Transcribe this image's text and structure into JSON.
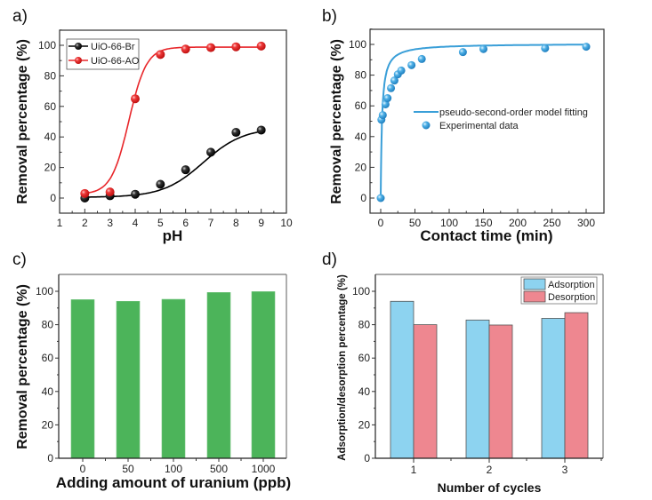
{
  "chart_data": [
    {
      "panel": "a)",
      "type": "line",
      "title": "",
      "xlabel": "pH",
      "ylabel": "Removal percentage (%)",
      "xlim": [
        1,
        10
      ],
      "ylim": [
        -10,
        110
      ],
      "xticks": [
        "1",
        "2",
        "3",
        "4",
        "5",
        "6",
        "7",
        "8",
        "9",
        "10"
      ],
      "yticks": [
        "0",
        "20",
        "40",
        "60",
        "80",
        "100"
      ],
      "legend": "top-left",
      "grid": false,
      "x": [
        2,
        3,
        4,
        5,
        6,
        7,
        8,
        9
      ],
      "series": [
        {
          "name": "UiO-66-Br",
          "color": "#000000",
          "values": [
            0,
            1.5,
            2.5,
            9,
            18.5,
            30,
            43,
            44.5
          ]
        },
        {
          "name": "UiO-66-AO",
          "color": "#e8262a",
          "values": [
            3,
            4,
            65,
            94,
            97.5,
            98.5,
            99,
            99.5
          ]
        }
      ]
    },
    {
      "panel": "b)",
      "type": "scatter",
      "title": "",
      "xlabel": "Contact time (min)",
      "ylabel": "Removal percentage (%)",
      "xlim": [
        -15,
        315
      ],
      "ylim": [
        -10,
        110
      ],
      "xticks": [
        "0",
        "50",
        "100",
        "150",
        "200",
        "250",
        "300"
      ],
      "yticks": [
        "0",
        "20",
        "40",
        "60",
        "80",
        "100"
      ],
      "legend": "center-right",
      "grid": false,
      "color": "#3a9fd8",
      "series": [
        {
          "name": "pseudo-second-order model fitting",
          "kind": "line"
        },
        {
          "name": "Experimental data",
          "kind": "scatter",
          "x": [
            0,
            1,
            3,
            7,
            10,
            15,
            20,
            25,
            30,
            45,
            60,
            120,
            150,
            240,
            300
          ],
          "values": [
            0,
            51,
            54,
            61,
            65,
            71.5,
            76.5,
            80.5,
            83,
            86.5,
            90.5,
            95,
            97,
            97.5,
            98.5
          ]
        }
      ]
    },
    {
      "panel": "c)",
      "type": "bar",
      "title": "",
      "xlabel": "Adding amount of uranium (ppb)",
      "ylabel": "Removal percentage (%)",
      "ylim": [
        0,
        110
      ],
      "yticks": [
        "0",
        "20",
        "40",
        "60",
        "80",
        "100"
      ],
      "categories": [
        "0",
        "50",
        "100",
        "500",
        "1000"
      ],
      "values": [
        95,
        94,
        95.2,
        99.3,
        99.8
      ],
      "color": "#4cb45a",
      "grid": false
    },
    {
      "panel": "d)",
      "type": "bar",
      "title": "",
      "xlabel": "Number of cycles",
      "ylabel": "Adsorption/desorption percentage (%)",
      "ylim": [
        0,
        110
      ],
      "yticks": [
        "0",
        "20",
        "40",
        "60",
        "80",
        "100"
      ],
      "categories": [
        "1",
        "2",
        "3"
      ],
      "legend": "top-right",
      "grid": false,
      "series": [
        {
          "name": "Adsorption",
          "color": "#8dd3f0",
          "values": [
            94,
            82.8,
            83.8
          ]
        },
        {
          "name": "Desorption",
          "color": "#ee8790",
          "values": [
            80,
            79.8,
            87.2
          ]
        }
      ]
    }
  ]
}
